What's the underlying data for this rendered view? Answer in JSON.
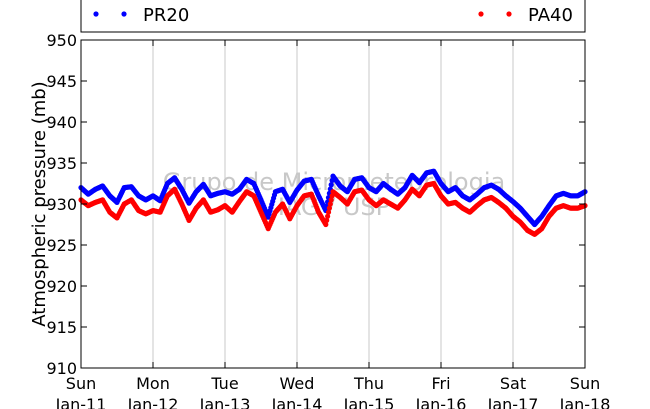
{
  "chart_data": {
    "type": "scatter",
    "title": "",
    "xlabel": "",
    "ylabel": "Atmospheric pressure (mb)",
    "ylim": [
      910,
      950
    ],
    "xlim": [
      0,
      7
    ],
    "grid": "vertical",
    "yticks": [
      "910",
      "915",
      "920",
      "925",
      "930",
      "935",
      "940",
      "945",
      "950"
    ],
    "xticks": [
      {
        "day": "Sun",
        "date": "Jan-11"
      },
      {
        "day": "Mon",
        "date": "Jan-12"
      },
      {
        "day": "Tue",
        "date": "Jan-13"
      },
      {
        "day": "Wed",
        "date": "Jan-14"
      },
      {
        "day": "Thu",
        "date": "Jan-15"
      },
      {
        "day": "Fri",
        "date": "Jan-16"
      },
      {
        "day": "Sat",
        "date": "Jan-17"
      },
      {
        "day": "Sun",
        "date": "Jan-18"
      }
    ],
    "legend_position": "top",
    "watermark": [
      "Grupo de Micrometeorologia",
      "IAG / USP"
    ],
    "series": [
      {
        "name": "PR20",
        "color": "#0000ff",
        "x": [
          0.0,
          0.1,
          0.2,
          0.3,
          0.4,
          0.5,
          0.6,
          0.7,
          0.8,
          0.9,
          1.0,
          1.1,
          1.2,
          1.3,
          1.4,
          1.5,
          1.6,
          1.7,
          1.8,
          1.9,
          2.0,
          2.1,
          2.2,
          2.3,
          2.4,
          2.5,
          2.6,
          2.7,
          2.8,
          2.9,
          3.0,
          3.1,
          3.2,
          3.3,
          3.4,
          3.5,
          3.6,
          3.7,
          3.8,
          3.9,
          4.0,
          4.1,
          4.2,
          4.3,
          4.4,
          4.5,
          4.6,
          4.7,
          4.8,
          4.9,
          5.0,
          5.1,
          5.2,
          5.3,
          5.4,
          5.5,
          5.6,
          5.7,
          5.8,
          5.9,
          6.0,
          6.1,
          6.2,
          6.3,
          6.4,
          6.5,
          6.6,
          6.7,
          6.8,
          6.9,
          7.0
        ],
        "y": [
          932.0,
          931.2,
          931.8,
          932.2,
          931.0,
          930.2,
          932.0,
          932.1,
          931.0,
          930.5,
          931.0,
          930.4,
          932.5,
          933.2,
          931.8,
          930.1,
          931.5,
          932.4,
          931.0,
          931.3,
          931.5,
          931.2,
          931.8,
          933.0,
          932.5,
          930.5,
          928.4,
          931.5,
          931.8,
          930.2,
          931.7,
          932.8,
          933.0,
          931.0,
          929.2,
          933.4,
          932.2,
          931.5,
          933.0,
          933.2,
          932.0,
          931.5,
          932.5,
          931.8,
          931.2,
          932.0,
          933.5,
          932.6,
          933.8,
          934.0,
          932.5,
          931.5,
          932.0,
          931.0,
          930.5,
          931.2,
          932.0,
          932.3,
          931.8,
          931.0,
          930.3,
          929.5,
          928.5,
          927.5,
          928.5,
          929.8,
          931.0,
          931.3,
          931.0,
          931.0,
          931.5
        ]
      },
      {
        "name": "PA40",
        "color": "#ff0000",
        "x": [
          0.0,
          0.1,
          0.2,
          0.3,
          0.4,
          0.5,
          0.6,
          0.7,
          0.8,
          0.9,
          1.0,
          1.1,
          1.2,
          1.3,
          1.4,
          1.5,
          1.6,
          1.7,
          1.8,
          1.9,
          2.0,
          2.1,
          2.2,
          2.3,
          2.4,
          2.5,
          2.6,
          2.7,
          2.8,
          2.9,
          3.0,
          3.1,
          3.2,
          3.3,
          3.4,
          3.5,
          3.6,
          3.7,
          3.8,
          3.9,
          4.0,
          4.1,
          4.2,
          4.3,
          4.4,
          4.5,
          4.6,
          4.7,
          4.8,
          4.9,
          5.0,
          5.1,
          5.2,
          5.3,
          5.4,
          5.5,
          5.6,
          5.7,
          5.8,
          5.9,
          6.0,
          6.1,
          6.2,
          6.3,
          6.4,
          6.5,
          6.6,
          6.7,
          6.8,
          6.9,
          7.0
        ],
        "y": [
          930.5,
          929.8,
          930.2,
          930.5,
          929.0,
          928.3,
          930.0,
          930.5,
          929.2,
          928.8,
          929.2,
          929.0,
          931.0,
          931.8,
          930.0,
          928.0,
          929.5,
          930.5,
          929.0,
          929.3,
          929.8,
          929.0,
          930.3,
          931.5,
          931.0,
          929.0,
          927.0,
          929.0,
          930.0,
          928.2,
          929.8,
          931.0,
          931.2,
          929.0,
          927.5,
          931.5,
          930.8,
          930.0,
          931.5,
          931.7,
          930.5,
          929.8,
          930.5,
          930.0,
          929.5,
          930.5,
          931.8,
          931.0,
          932.3,
          932.5,
          931.0,
          930.0,
          930.2,
          929.5,
          929.0,
          929.8,
          930.5,
          930.8,
          930.2,
          929.5,
          928.5,
          927.8,
          926.8,
          926.3,
          927.0,
          928.5,
          929.5,
          929.8,
          929.5,
          929.5,
          929.8
        ]
      }
    ]
  }
}
